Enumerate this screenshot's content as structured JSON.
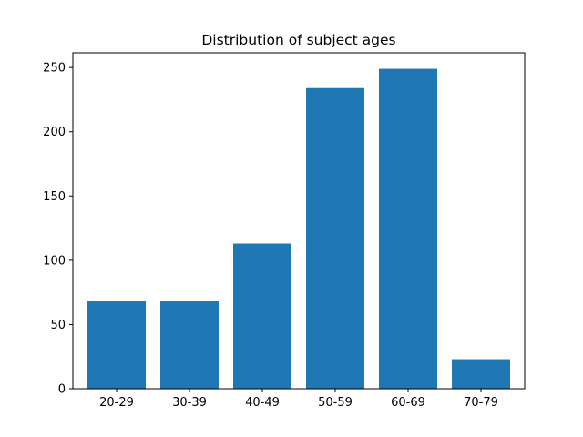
{
  "chart_data": {
    "type": "bar",
    "title": "Distribution of subject ages",
    "xlabel": "",
    "ylabel": "",
    "categories": [
      "20-29",
      "30-39",
      "40-49",
      "50-59",
      "60-69",
      "70-79"
    ],
    "values": [
      68,
      68,
      113,
      234,
      249,
      23
    ],
    "ylim": [
      0,
      261.45
    ],
    "yticks": [
      0,
      50,
      100,
      150,
      200,
      250
    ],
    "grid": false,
    "legend": "none",
    "colors": {
      "bar": "#1f77b4",
      "axis": "#000000",
      "background": "#ffffff"
    }
  }
}
